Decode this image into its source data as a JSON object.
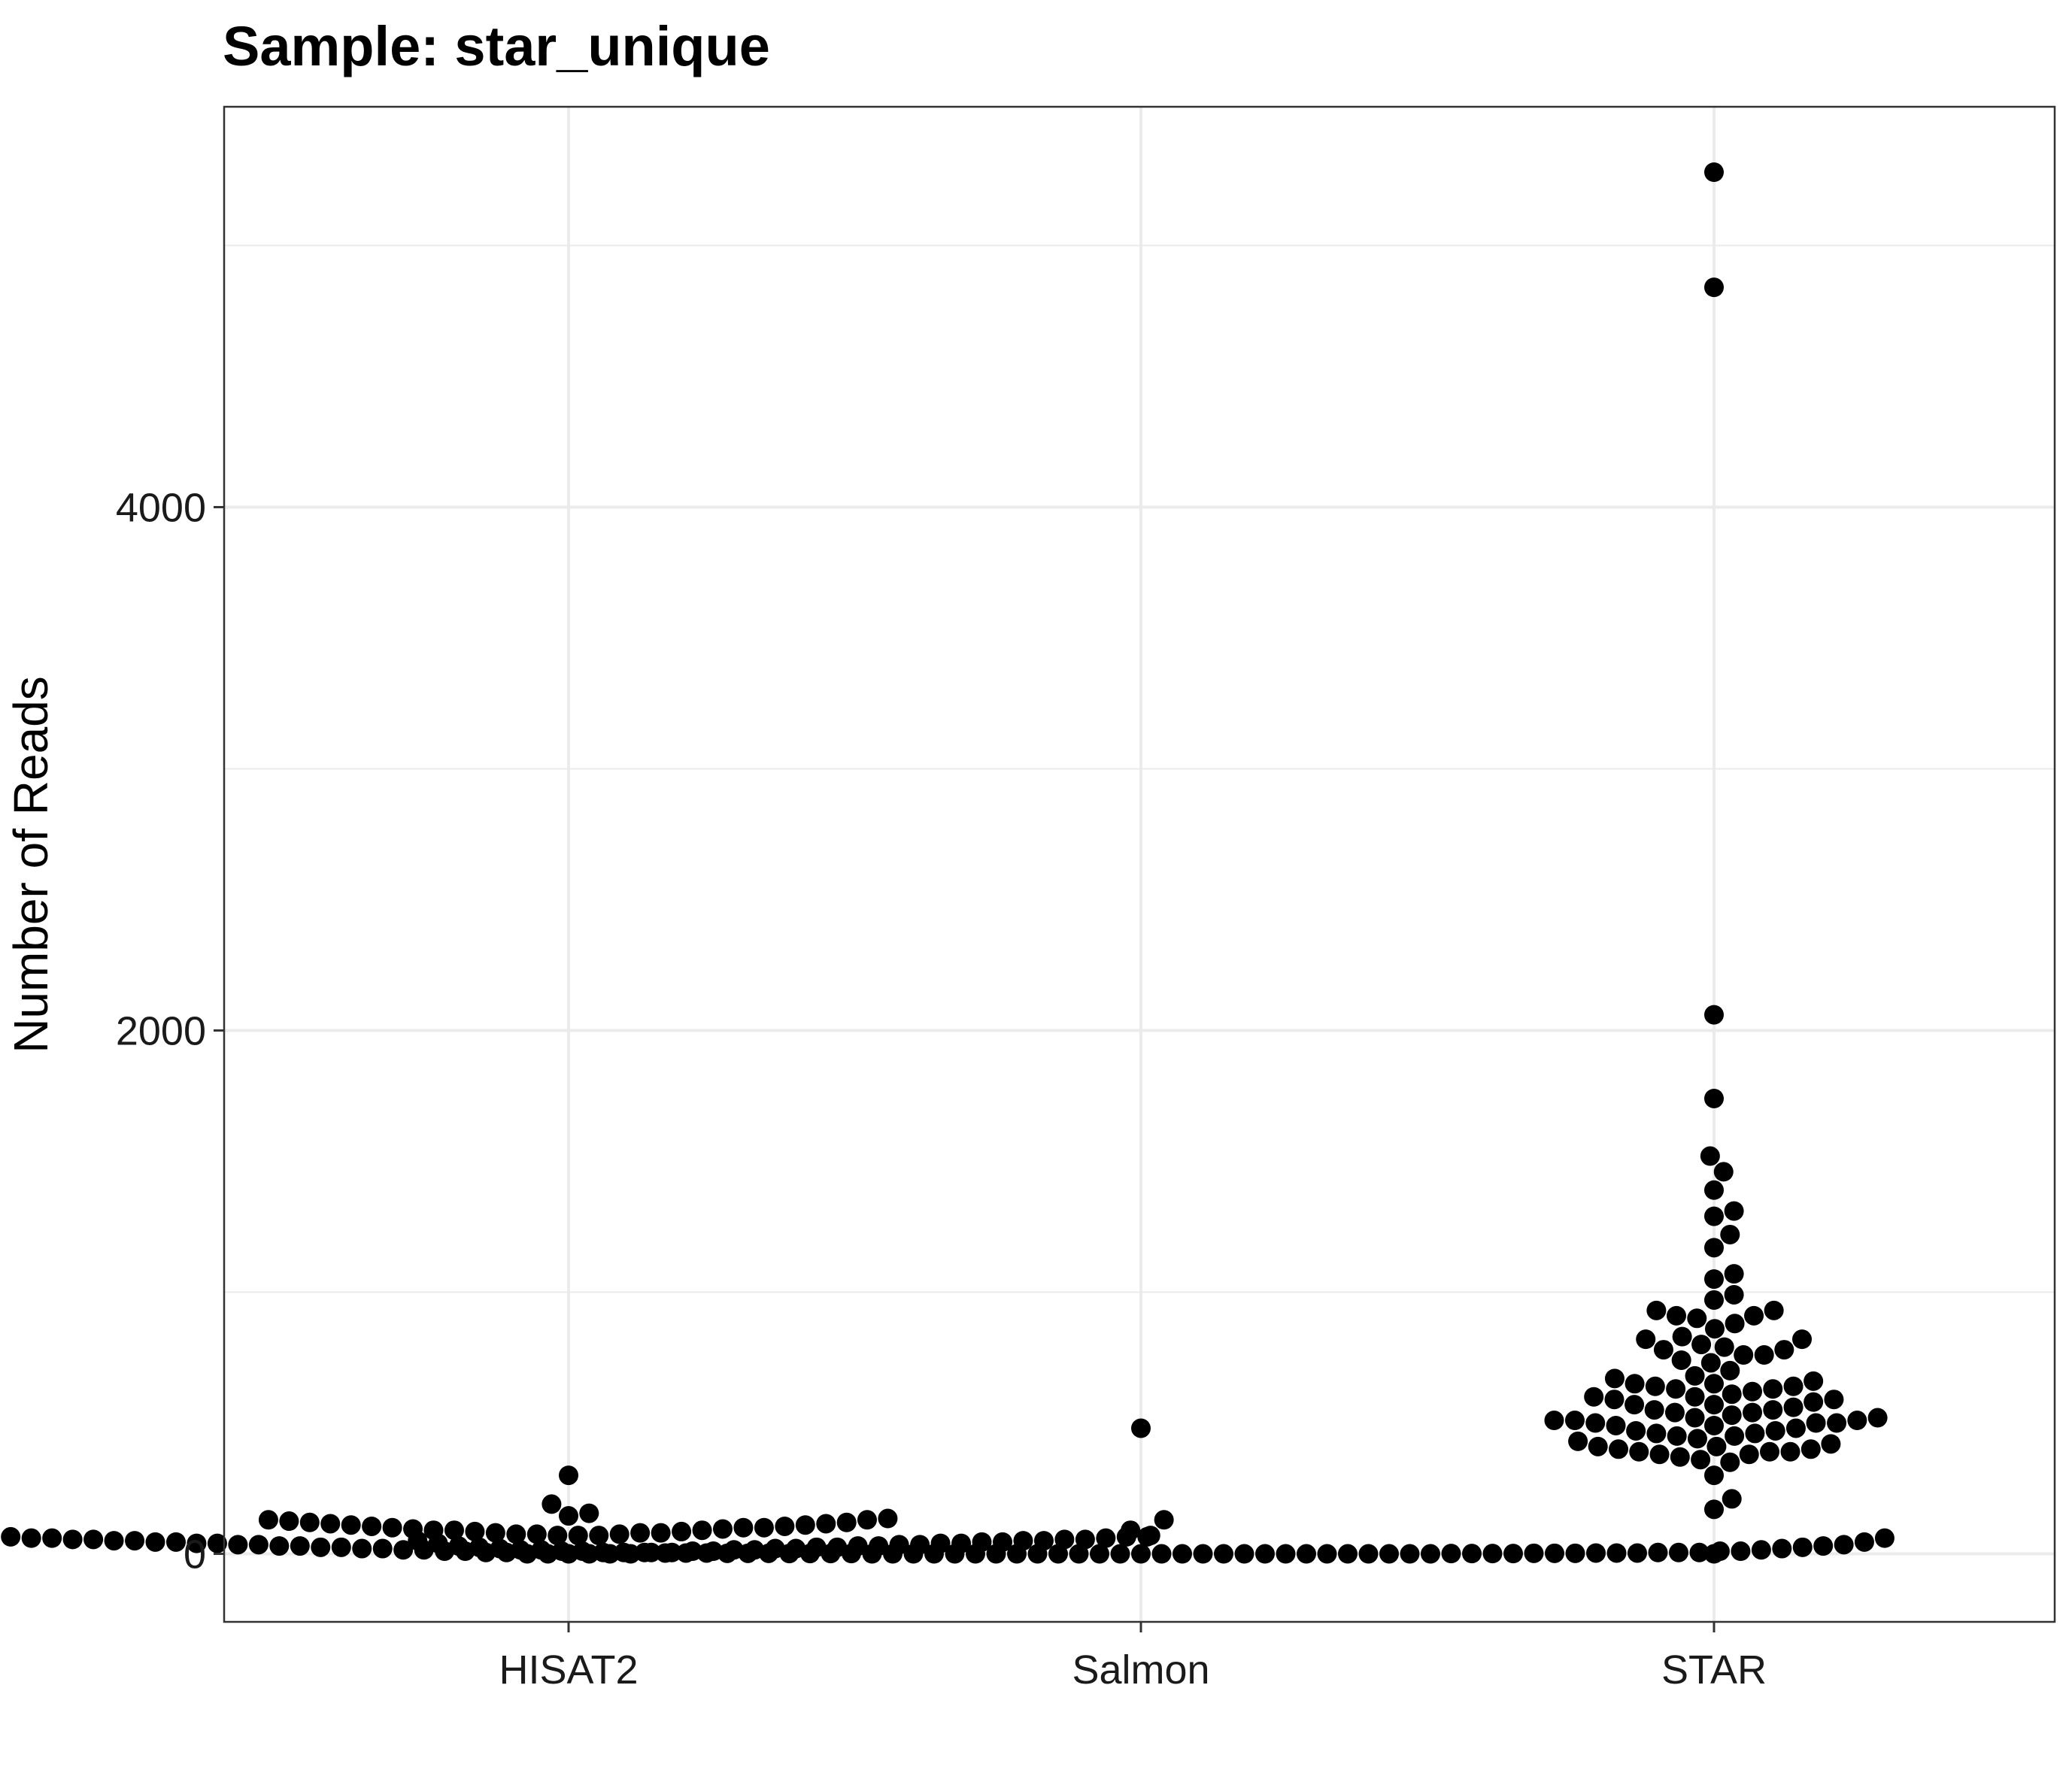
{
  "chart_data": {
    "type": "scatter",
    "title": "Sample: star_unique",
    "xlabel": "",
    "ylabel": "Number of Reads",
    "categories": [
      "HISAT2",
      "Salmon",
      "STAR"
    ],
    "ylim": [
      -260,
      5530
    ],
    "y_ticks": [
      0,
      2000,
      4000
    ],
    "y_minor_ticks": [
      1000,
      3000,
      5000
    ],
    "grid": true,
    "legend": "none",
    "point_color": "#000000",
    "series": [
      {
        "category": "HISAT2",
        "values": [
          300,
          190,
          155,
          145,
          135,
          130,
          130,
          125,
          120,
          120,
          115,
          115,
          110,
          110,
          105,
          105,
          100,
          100,
          100,
          95,
          95,
          90,
          90,
          90,
          85,
          85,
          80,
          80,
          80,
          75,
          75,
          75,
          70,
          70,
          70,
          65,
          65,
          65,
          60,
          60,
          60,
          55,
          55,
          55,
          55,
          50,
          50,
          50,
          50,
          45,
          45,
          45,
          45,
          40,
          40,
          40,
          40,
          35,
          35,
          35,
          35,
          30,
          30,
          30,
          30,
          25,
          25,
          25,
          25,
          20,
          20,
          20,
          20,
          15,
          15,
          15,
          15,
          10,
          10,
          10,
          10,
          5,
          5,
          5,
          5,
          0,
          0,
          0,
          0,
          0,
          0
        ]
      },
      {
        "category": "Salmon",
        "values": [
          480,
          130,
          90,
          70,
          60,
          50,
          45,
          40,
          35,
          30,
          30,
          25,
          25,
          20,
          20,
          15,
          15,
          15,
          10,
          10,
          10,
          10,
          5,
          5,
          5,
          5,
          5,
          5,
          3,
          3,
          3,
          3,
          3,
          3,
          2,
          2,
          2,
          2,
          2,
          2,
          1,
          1,
          1,
          1,
          1,
          1,
          1,
          1,
          0,
          0,
          0,
          0,
          0,
          0,
          0,
          0,
          0,
          0,
          0,
          0,
          0,
          0,
          0,
          0,
          0,
          0,
          0,
          0,
          0,
          0,
          0,
          0,
          0,
          0,
          0,
          0
        ]
      },
      {
        "category": "STAR",
        "values": [
          5280,
          4840,
          2060,
          1740,
          1520,
          1460,
          1390,
          1310,
          1290,
          1220,
          1170,
          1070,
          1050,
          990,
          970,
          930,
          930,
          910,
          910,
          900,
          880,
          860,
          830,
          820,
          820,
          800,
          790,
          780,
          780,
          760,
          760,
          740,
          730,
          700,
          680,
          670,
          660,
          650,
          650,
          640,
          640,
          630,
          630,
          620,
          610,
          600,
          600,
          590,
          590,
          580,
          570,
          570,
          560,
          550,
          550,
          540,
          540,
          530,
          520,
          520,
          510,
          510,
          510,
          500,
          500,
          500,
          490,
          490,
          480,
          470,
          470,
          460,
          460,
          450,
          450,
          440,
          430,
          420,
          410,
          410,
          400,
          400,
          390,
          390,
          390,
          380,
          380,
          370,
          360,
          350,
          300,
          210,
          170,
          0
        ]
      }
    ]
  }
}
